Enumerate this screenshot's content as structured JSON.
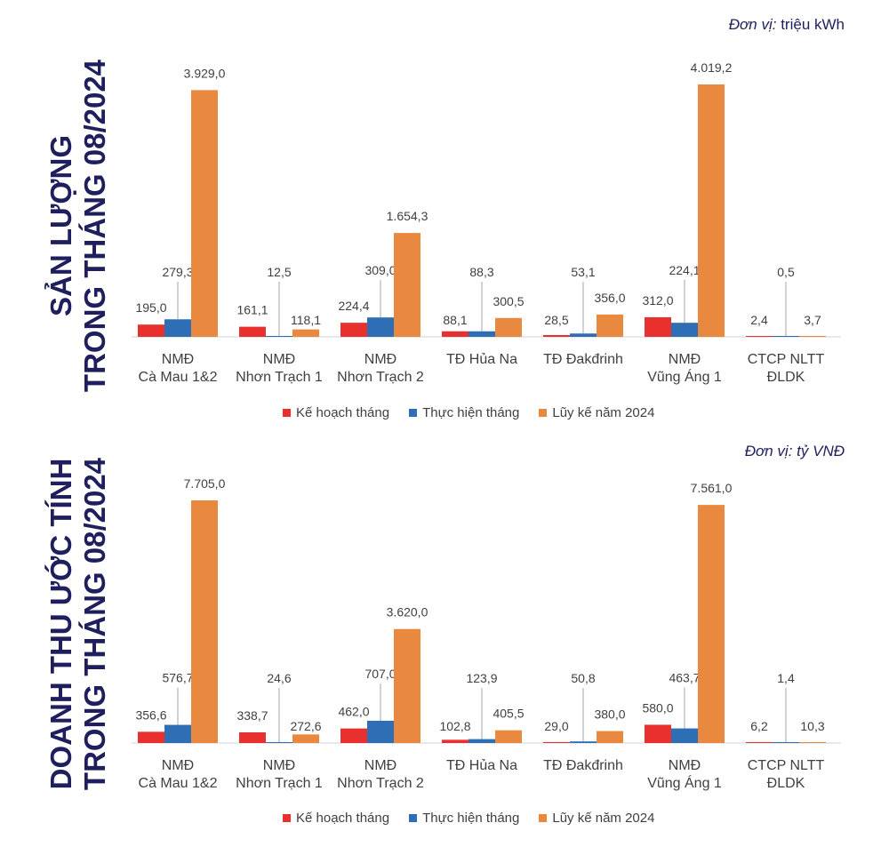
{
  "colors": {
    "plan": "#e8312f",
    "actual": "#2e6eb5",
    "ytd": "#e8893f",
    "title": "#1f1f5e"
  },
  "chart_data": [
    {
      "type": "bar",
      "title_line1": "SẢN LƯỢNG",
      "title_line2": "TRONG THÁNG 08/2024",
      "unit_label": "Đơn vị:",
      "unit_value": "triệu kWh",
      "categories": [
        [
          "NMĐ",
          "Cà Mau 1&2"
        ],
        [
          "NMĐ",
          "Nhơn Trạch 1"
        ],
        [
          "NMĐ",
          "Nhơn Trạch 2"
        ],
        [
          "TĐ Hủa Na",
          ""
        ],
        [
          "TĐ Đakđrinh",
          ""
        ],
        [
          "NMĐ",
          "Vũng Áng 1"
        ],
        [
          "CTCP NLTT",
          "ĐLDK"
        ]
      ],
      "series": [
        {
          "name": "Kế hoạch tháng",
          "values": [
            195.0,
            161.1,
            224.4,
            88.1,
            28.5,
            312.0,
            2.4
          ],
          "labels": [
            "195,0",
            "161,1",
            "224,4",
            "88,1",
            "28,5",
            "312,0",
            "2,4"
          ]
        },
        {
          "name": "Thực hiện tháng",
          "values": [
            279.3,
            12.5,
            309.0,
            88.3,
            53.1,
            224.1,
            0.5
          ],
          "labels": [
            "279,3",
            "12,5",
            "309,0",
            "88,3",
            "53,1",
            "224,1",
            "0,5"
          ]
        },
        {
          "name": "Lũy kế năm 2024",
          "values": [
            3929.0,
            118.1,
            1654.3,
            300.5,
            356.0,
            4019.2,
            3.7
          ],
          "labels": [
            "3.929,0",
            "118,1",
            "1.654,3",
            "300,5",
            "356,0",
            "4.019,2",
            "3,7"
          ]
        }
      ]
    },
    {
      "type": "bar",
      "title_line1": "DOANH THU ƯỚC TÍNH",
      "title_line2": "TRONG THÁNG 08/2024",
      "unit_label": "Đơn vị:",
      "unit_value": "tỷ VNĐ",
      "categories": [
        [
          "NMĐ",
          "Cà Mau 1&2"
        ],
        [
          "NMĐ",
          "Nhơn Trạch 1"
        ],
        [
          "NMĐ",
          "Nhơn Trạch 2"
        ],
        [
          "TĐ Hủa Na",
          ""
        ],
        [
          "TĐ Đakđrinh",
          ""
        ],
        [
          "NMĐ",
          "Vũng Áng 1"
        ],
        [
          "CTCP NLTT",
          "ĐLDK"
        ]
      ],
      "series": [
        {
          "name": "Kế hoạch tháng",
          "values": [
            356.6,
            338.7,
            462.0,
            102.8,
            29.0,
            580.0,
            6.2
          ],
          "labels": [
            "356,6",
            "338,7",
            "462,0",
            "102,8",
            "29,0",
            "580,0",
            "6,2"
          ]
        },
        {
          "name": "Thực hiện tháng",
          "values": [
            576.7,
            24.6,
            707.0,
            123.9,
            50.8,
            463.7,
            1.4
          ],
          "labels": [
            "576,7",
            "24,6",
            "707,0",
            "123,9",
            "50,8",
            "463,7",
            "1,4"
          ]
        },
        {
          "name": "Lũy kế năm 2024",
          "values": [
            7705.0,
            272.6,
            3620.0,
            405.5,
            380.0,
            7561.0,
            10.3
          ],
          "labels": [
            "7.705,0",
            "272,6",
            "3.620,0",
            "405,5",
            "380,0",
            "7.561,0",
            "10,3"
          ]
        }
      ]
    }
  ]
}
